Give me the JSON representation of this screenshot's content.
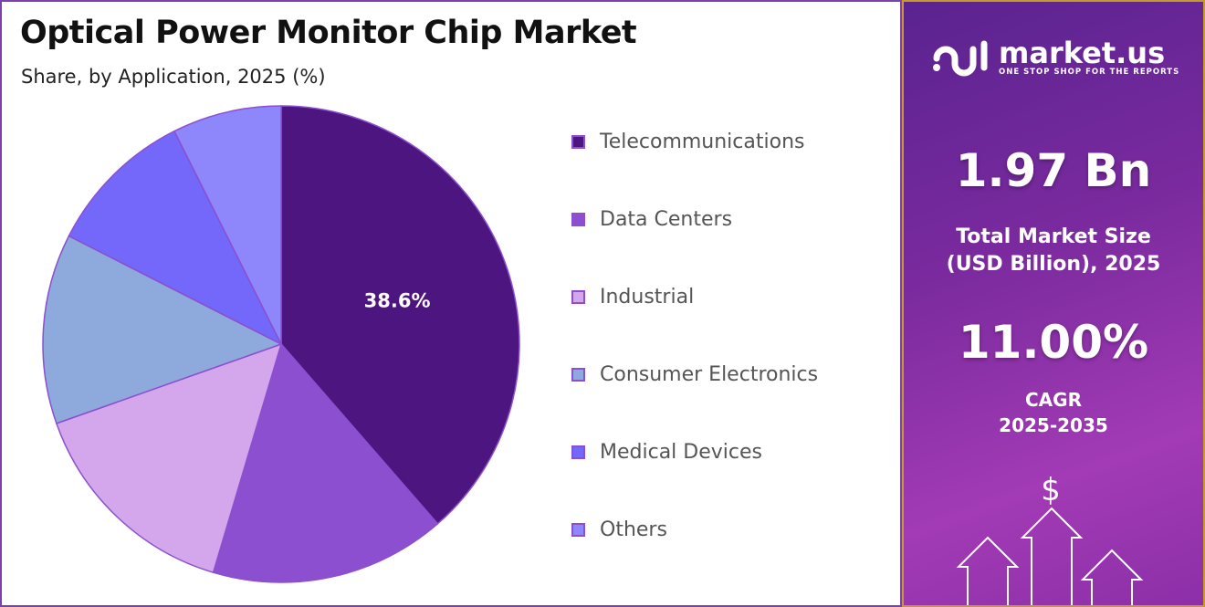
{
  "chart_data": {
    "type": "pie",
    "title": "Optical Power Monitor Chip Market",
    "subtitle": "Share, by Application, 2025 (%)",
    "categories": [
      "Telecommunications",
      "Data Centers",
      "Industrial",
      "Consumer Electronics",
      "Medical Devices",
      "Others"
    ],
    "values": [
      38.6,
      16.0,
      15.0,
      12.9,
      10.1,
      7.4
    ],
    "colors": [
      "#4d157f",
      "#8b4fcf",
      "#d4a6ec",
      "#8ea9db",
      "#7468fb",
      "#8d87fb"
    ],
    "data_labels": [
      "38.6%",
      "",
      "",
      "",
      "",
      ""
    ],
    "legend_position": "right"
  },
  "side_panel": {
    "logo_name": "market.us",
    "logo_tagline": "ONE STOP SHOP FOR THE REPORTS",
    "market_size": "1.97 Bn",
    "market_size_label_1": "Total Market Size",
    "market_size_label_2": "(USD Billion), 2025",
    "cagr": "11.00%",
    "cagr_label_1": "CAGR",
    "cagr_label_2": "2025-2035",
    "dollar_icon": "$"
  }
}
